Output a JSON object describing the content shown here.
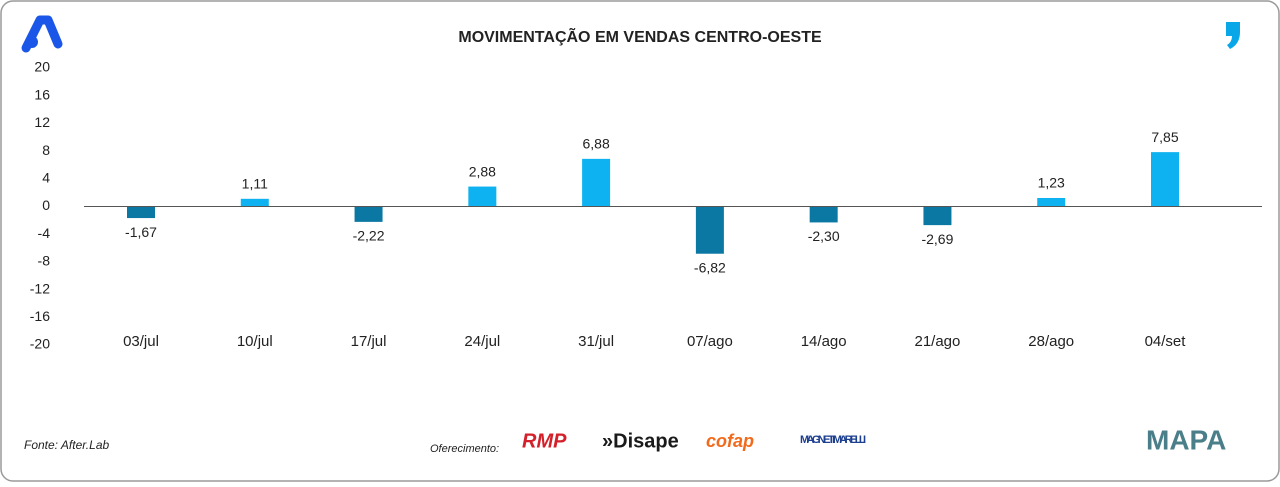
{
  "chart_data": {
    "type": "bar",
    "title": "MOVIMENTAÇÃO EM VENDAS CENTRO-OESTE",
    "categories": [
      "03/jul",
      "10/jul",
      "17/jul",
      "24/jul",
      "31/jul",
      "07/ago",
      "14/ago",
      "21/ago",
      "28/ago",
      "04/set"
    ],
    "values": [
      -1.67,
      1.11,
      -2.22,
      2.88,
      6.88,
      -6.82,
      -2.3,
      -2.69,
      1.23,
      7.85
    ],
    "value_labels": [
      "-1,67",
      "1,11",
      "-2,22",
      "2,88",
      "6,88",
      "-6,82",
      "-2,30",
      "-2,69",
      "1,23",
      "7,85"
    ],
    "positive_color": "#0eb2f0",
    "negative_color": "#0b77a3",
    "ylim": [
      -20,
      20
    ],
    "yticks": [
      20,
      16,
      12,
      8,
      4,
      0,
      -4,
      -8,
      -12,
      -16,
      -20
    ],
    "grid": false
  },
  "footer": {
    "source": "Fonte: After.Lab",
    "sponsor_label": "Oferecimento:",
    "sponsors": [
      "RMP",
      "»Disape",
      "cofap",
      "MAGNETI MARELLI"
    ],
    "brand": "MAPA"
  }
}
